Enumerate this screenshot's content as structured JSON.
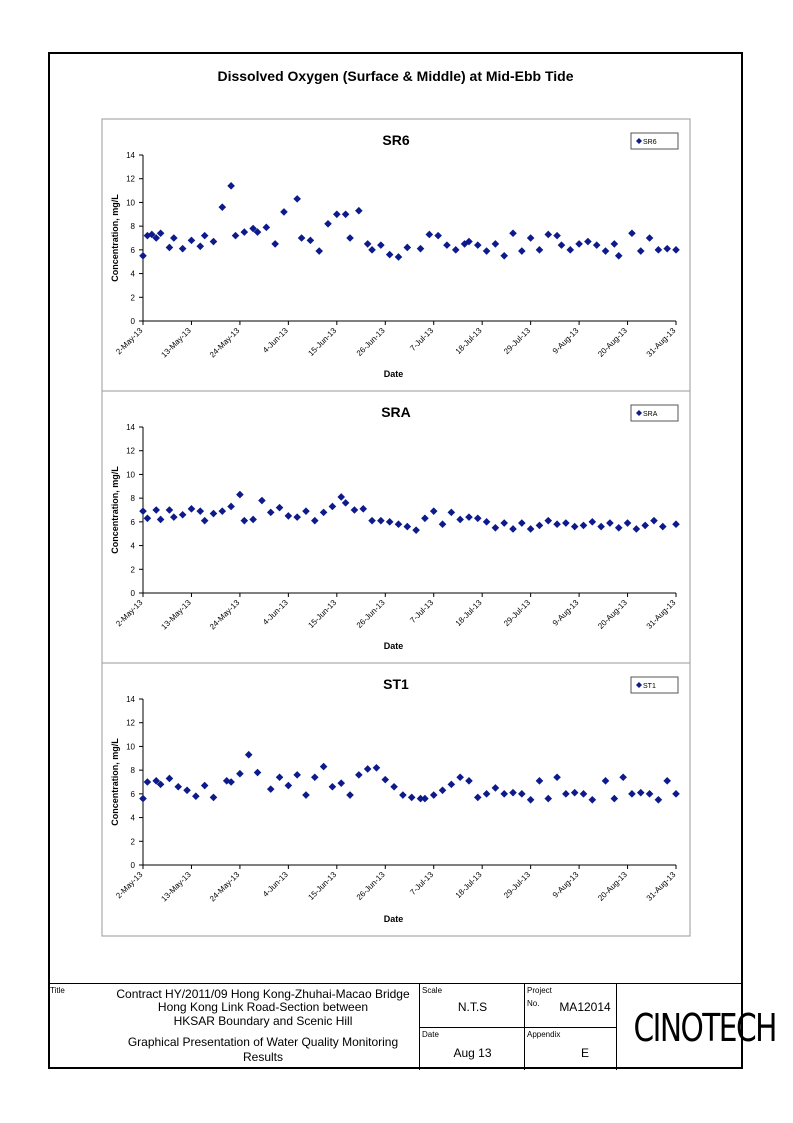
{
  "page_title": "Dissolved Oxygen (Surface & Middle) at Mid-Ebb Tide",
  "chart_data": [
    {
      "type": "scatter",
      "title": "SR6",
      "xlabel": "Date",
      "ylabel": "Concentration, mg/L",
      "ylim": [
        0,
        14
      ],
      "yticks": [
        0,
        2,
        4,
        6,
        8,
        10,
        12,
        14
      ],
      "xlim": [
        "2-May-13",
        "31-Aug-13"
      ],
      "xticks": [
        "2-May-13",
        "13-May-13",
        "24-May-13",
        "4-Jun-13",
        "15-Jun-13",
        "26-Jun-13",
        "7-Jul-13",
        "18-Jul-13",
        "29-Jul-13",
        "9-Aug-13",
        "20-Aug-13",
        "31-Aug-13"
      ],
      "legend": "top-right",
      "grid": false,
      "series": [
        {
          "name": "SR6",
          "color": "#0d1a8c",
          "marker": "diamond",
          "x": [
            "2-May-13",
            "3-May-13",
            "4-May-13",
            "5-May-13",
            "6-May-13",
            "8-May-13",
            "9-May-13",
            "11-May-13",
            "13-May-13",
            "15-May-13",
            "16-May-13",
            "18-May-13",
            "20-May-13",
            "22-May-13",
            "23-May-13",
            "25-May-13",
            "27-May-13",
            "28-May-13",
            "30-May-13",
            "1-Jun-13",
            "3-Jun-13",
            "6-Jun-13",
            "7-Jun-13",
            "9-Jun-13",
            "11-Jun-13",
            "13-Jun-13",
            "15-Jun-13",
            "17-Jun-13",
            "18-Jun-13",
            "20-Jun-13",
            "22-Jun-13",
            "23-Jun-13",
            "25-Jun-13",
            "27-Jun-13",
            "29-Jun-13",
            "1-Jul-13",
            "4-Jul-13",
            "6-Jul-13",
            "8-Jul-13",
            "10-Jul-13",
            "12-Jul-13",
            "14-Jul-13",
            "15-Jul-13",
            "17-Jul-13",
            "19-Jul-13",
            "21-Jul-13",
            "23-Jul-13",
            "25-Jul-13",
            "27-Jul-13",
            "29-Jul-13",
            "31-Jul-13",
            "2-Aug-13",
            "4-Aug-13",
            "5-Aug-13",
            "7-Aug-13",
            "9-Aug-13",
            "11-Aug-13",
            "13-Aug-13",
            "15-Aug-13",
            "17-Aug-13",
            "18-Aug-13",
            "21-Aug-13",
            "23-Aug-13",
            "25-Aug-13",
            "27-Aug-13",
            "29-Aug-13",
            "31-Aug-13"
          ],
          "y": [
            5.5,
            7.2,
            7.3,
            7.0,
            7.4,
            6.2,
            7.0,
            6.1,
            6.8,
            6.3,
            7.2,
            6.7,
            9.6,
            11.4,
            7.2,
            7.5,
            7.8,
            7.5,
            7.9,
            6.5,
            9.2,
            10.3,
            7.0,
            6.8,
            5.9,
            8.2,
            9.0,
            9.0,
            7.0,
            9.3,
            6.5,
            6.0,
            6.4,
            5.6,
            5.4,
            6.2,
            6.1,
            7.3,
            7.2,
            6.4,
            6.0,
            6.5,
            6.7,
            6.4,
            5.9,
            6.5,
            5.5,
            7.4,
            5.9,
            7.0,
            6.0,
            7.3,
            7.2,
            6.4,
            6.0,
            6.5,
            6.7,
            6.4,
            5.9,
            6.5,
            5.5,
            7.4,
            5.9,
            7.0,
            6.0,
            6.1,
            6.0
          ]
        }
      ]
    },
    {
      "type": "scatter",
      "title": "SRA",
      "xlabel": "Date",
      "ylabel": "Concentration, mg/L",
      "ylim": [
        0,
        14
      ],
      "yticks": [
        0,
        2,
        4,
        6,
        8,
        10,
        12,
        14
      ],
      "xlim": [
        "2-May-13",
        "31-Aug-13"
      ],
      "xticks": [
        "2-May-13",
        "13-May-13",
        "24-May-13",
        "4-Jun-13",
        "15-Jun-13",
        "26-Jun-13",
        "7-Jul-13",
        "18-Jul-13",
        "29-Jul-13",
        "9-Aug-13",
        "20-Aug-13",
        "31-Aug-13"
      ],
      "legend": "top-right",
      "grid": false,
      "series": [
        {
          "name": "SRA",
          "color": "#0d1a8c",
          "marker": "diamond",
          "x": [
            "2-May-13",
            "3-May-13",
            "5-May-13",
            "6-May-13",
            "8-May-13",
            "9-May-13",
            "11-May-13",
            "13-May-13",
            "15-May-13",
            "16-May-13",
            "18-May-13",
            "20-May-13",
            "22-May-13",
            "24-May-13",
            "25-May-13",
            "27-May-13",
            "29-May-13",
            "31-May-13",
            "2-Jun-13",
            "4-Jun-13",
            "6-Jun-13",
            "8-Jun-13",
            "10-Jun-13",
            "12-Jun-13",
            "14-Jun-13",
            "16-Jun-13",
            "17-Jun-13",
            "19-Jun-13",
            "21-Jun-13",
            "23-Jun-13",
            "25-Jun-13",
            "27-Jun-13",
            "29-Jun-13",
            "1-Jul-13",
            "3-Jul-13",
            "5-Jul-13",
            "7-Jul-13",
            "9-Jul-13",
            "11-Jul-13",
            "13-Jul-13",
            "15-Jul-13",
            "17-Jul-13",
            "19-Jul-13",
            "21-Jul-13",
            "23-Jul-13",
            "25-Jul-13",
            "27-Jul-13",
            "29-Jul-13",
            "31-Jul-13",
            "2-Aug-13",
            "4-Aug-13",
            "6-Aug-13",
            "8-Aug-13",
            "10-Aug-13",
            "12-Aug-13",
            "14-Aug-13",
            "16-Aug-13",
            "18-Aug-13",
            "20-Aug-13",
            "22-Aug-13",
            "24-Aug-13",
            "26-Aug-13",
            "28-Aug-13",
            "31-Aug-13"
          ],
          "y": [
            6.9,
            6.3,
            7.0,
            6.2,
            7.0,
            6.4,
            6.6,
            7.1,
            6.9,
            6.1,
            6.7,
            6.9,
            7.3,
            8.3,
            6.1,
            6.2,
            7.8,
            6.8,
            7.2,
            6.5,
            6.4,
            6.9,
            6.1,
            6.8,
            7.3,
            8.1,
            7.6,
            7.0,
            7.1,
            6.1,
            6.1,
            6.0,
            5.8,
            5.6,
            5.3,
            6.3,
            6.9,
            5.8,
            6.8,
            6.2,
            6.4,
            6.3,
            6.0,
            5.5,
            5.9,
            5.4,
            5.9,
            5.4,
            5.7,
            6.1,
            5.8,
            5.9,
            5.6,
            5.7,
            6.0,
            5.6,
            5.9,
            5.5,
            5.9,
            5.4,
            5.7,
            6.1,
            5.6,
            5.8
          ]
        }
      ]
    },
    {
      "type": "scatter",
      "title": "ST1",
      "xlabel": "Date",
      "ylabel": "Concentration, mg/L",
      "ylim": [
        0,
        14
      ],
      "yticks": [
        0,
        2,
        4,
        6,
        8,
        10,
        12,
        14
      ],
      "xlim": [
        "2-May-13",
        "31-Aug-13"
      ],
      "xticks": [
        "2-May-13",
        "13-May-13",
        "24-May-13",
        "4-Jun-13",
        "15-Jun-13",
        "26-Jun-13",
        "7-Jul-13",
        "18-Jul-13",
        "29-Jul-13",
        "9-Aug-13",
        "20-Aug-13",
        "31-Aug-13"
      ],
      "legend": "top-right",
      "grid": false,
      "series": [
        {
          "name": "ST1",
          "color": "#0d1a8c",
          "marker": "diamond",
          "x": [
            "2-May-13",
            "3-May-13",
            "5-May-13",
            "6-May-13",
            "8-May-13",
            "10-May-13",
            "12-May-13",
            "14-May-13",
            "16-May-13",
            "18-May-13",
            "21-May-13",
            "22-May-13",
            "24-May-13",
            "26-May-13",
            "28-May-13",
            "31-May-13",
            "2-Jun-13",
            "4-Jun-13",
            "6-Jun-13",
            "8-Jun-13",
            "10-Jun-13",
            "12-Jun-13",
            "14-Jun-13",
            "16-Jun-13",
            "18-Jun-13",
            "20-Jun-13",
            "22-Jun-13",
            "24-Jun-13",
            "26-Jun-13",
            "28-Jun-13",
            "30-Jun-13",
            "2-Jul-13",
            "4-Jul-13",
            "5-Jul-13",
            "7-Jul-13",
            "9-Jul-13",
            "11-Jul-13",
            "13-Jul-13",
            "15-Jul-13",
            "17-Jul-13",
            "19-Jul-13",
            "21-Jul-13",
            "23-Jul-13",
            "25-Jul-13",
            "27-Jul-13",
            "29-Jul-13",
            "31-Jul-13",
            "2-Aug-13",
            "4-Aug-13",
            "6-Aug-13",
            "8-Aug-13",
            "10-Aug-13",
            "12-Aug-13",
            "15-Aug-13",
            "17-Aug-13",
            "19-Aug-13",
            "21-Aug-13",
            "23-Aug-13",
            "25-Aug-13",
            "27-Aug-13",
            "29-Aug-13",
            "31-Aug-13"
          ],
          "y": [
            5.6,
            7.0,
            7.1,
            6.8,
            7.3,
            6.6,
            6.3,
            5.8,
            6.7,
            5.7,
            7.1,
            7.0,
            7.7,
            9.3,
            7.8,
            6.4,
            7.4,
            6.7,
            7.6,
            5.9,
            7.4,
            8.3,
            6.6,
            6.9,
            5.9,
            7.6,
            8.1,
            8.2,
            7.2,
            6.6,
            5.9,
            5.7,
            5.6,
            5.6,
            5.9,
            6.3,
            6.8,
            7.4,
            7.1,
            5.7,
            6.0,
            6.5,
            6.0,
            6.1,
            6.0,
            5.5,
            7.1,
            5.6,
            7.4,
            6.0,
            6.1,
            6.0,
            5.5,
            7.1,
            5.6,
            7.4,
            6.0,
            6.1,
            6.0,
            5.5,
            7.1,
            6.0
          ]
        }
      ]
    }
  ],
  "title_block": {
    "title_label": "Title",
    "title_lines": [
      "Contract HY/2011/09 Hong Kong-Zhuhai-Macao Bridge",
      "Hong Kong Link Road-Section between",
      "HKSAR Boundary and Scenic Hill"
    ],
    "subtitle_lines": [
      "Graphical Presentation of Water Quality Monitoring",
      "Results"
    ],
    "scale_label": "Scale",
    "scale_value": "N.T.S",
    "date_label": "Date",
    "date_value": "Aug 13",
    "project_label": "Project",
    "project_no_label": "No.",
    "project_no_value": "MA12014",
    "appendix_label": "Appendix",
    "appendix_value": "E",
    "logo_text": "CINOTECH"
  }
}
